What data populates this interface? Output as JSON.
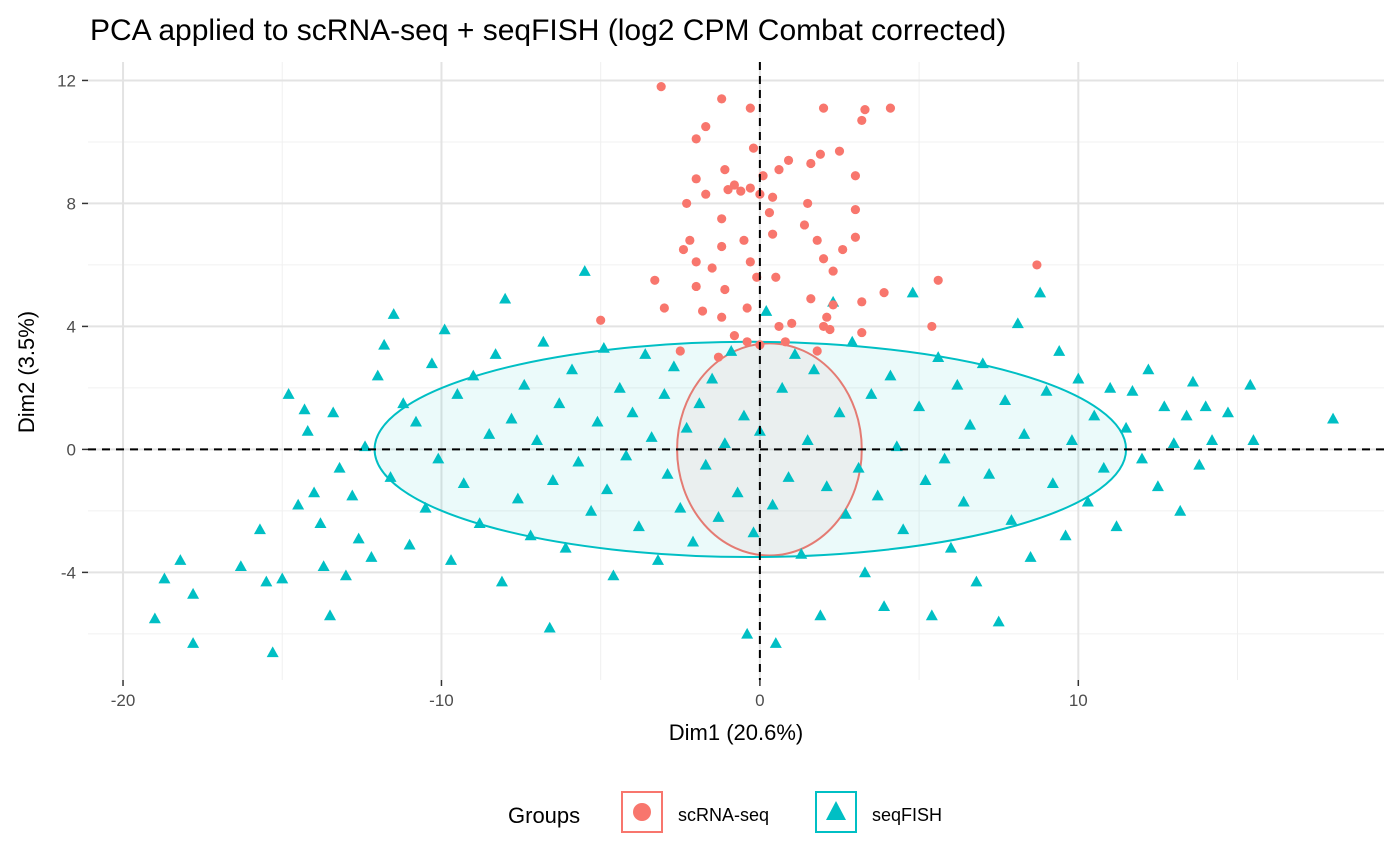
{
  "chart_data": {
    "type": "scatter",
    "title": "PCA applied to scRNA-seq + seqFISH (log2 CPM Combat corrected)",
    "xlabel": "Dim1 (20.6%)",
    "ylabel": "Dim2 (3.5%)",
    "xlim": [
      -21.1,
      19.6
    ],
    "ylim": [
      -7.5,
      12.6
    ],
    "x_ticks": [
      -20,
      -10,
      0,
      10
    ],
    "y_ticks": [
      -4,
      0,
      4,
      8,
      12
    ],
    "x_tick_labels": [
      "-20",
      "-10",
      "0",
      "10"
    ],
    "y_tick_labels": [
      "-4",
      "0",
      "4",
      "8",
      "12"
    ],
    "grid": true,
    "reference_lines": {
      "x": 0,
      "y": 0,
      "style": "dashed"
    },
    "legend": {
      "title": "Groups",
      "position": "bottom",
      "entries": [
        {
          "label": "scRNA-seq",
          "shape": "circle",
          "color": "#F8766D"
        },
        {
          "label": "seqFISH",
          "shape": "triangle",
          "color": "#00BFC4"
        }
      ]
    },
    "series": [
      {
        "name": "scRNA-seq",
        "shape": "circle",
        "color": "#F8766D",
        "ellipse": {
          "cx": 0.3,
          "cy": 0,
          "rx": 2.9,
          "ry": 3.45
        },
        "points": [
          [
            -3.1,
            11.8
          ],
          [
            -1.2,
            11.4
          ],
          [
            -0.3,
            11.1
          ],
          [
            2.0,
            11.1
          ],
          [
            3.3,
            11.05
          ],
          [
            4.1,
            11.1
          ],
          [
            3.2,
            10.7
          ],
          [
            -1.7,
            10.5
          ],
          [
            -2.0,
            10.1
          ],
          [
            -0.2,
            9.8
          ],
          [
            0.9,
            9.4
          ],
          [
            2.5,
            9.7
          ],
          [
            1.9,
            9.6
          ],
          [
            -1.1,
            9.1
          ],
          [
            -0.8,
            8.6
          ],
          [
            0.1,
            8.9
          ],
          [
            0.6,
            9.1
          ],
          [
            1.6,
            9.3
          ],
          [
            3.0,
            8.9
          ],
          [
            -2.3,
            8.0
          ],
          [
            -1.7,
            8.3
          ],
          [
            -0.3,
            8.5
          ],
          [
            -0.6,
            8.4
          ],
          [
            0.4,
            8.2
          ],
          [
            -1.0,
            8.45
          ],
          [
            1.5,
            8.0
          ],
          [
            -2.0,
            8.8
          ],
          [
            0.0,
            8.3
          ],
          [
            0.3,
            7.7
          ],
          [
            -1.2,
            7.5
          ],
          [
            1.4,
            7.3
          ],
          [
            3.0,
            7.8
          ],
          [
            -2.2,
            6.8
          ],
          [
            -2.4,
            6.5
          ],
          [
            -0.5,
            6.8
          ],
          [
            -1.2,
            6.6
          ],
          [
            0.4,
            7.0
          ],
          [
            1.8,
            6.8
          ],
          [
            2.6,
            6.5
          ],
          [
            3.0,
            6.9
          ],
          [
            -3.3,
            5.5
          ],
          [
            -2.0,
            6.1
          ],
          [
            -1.5,
            5.9
          ],
          [
            -0.3,
            6.1
          ],
          [
            -0.1,
            5.6
          ],
          [
            0.5,
            5.6
          ],
          [
            2.0,
            6.2
          ],
          [
            2.3,
            5.8
          ],
          [
            -1.1,
            5.2
          ],
          [
            -2.0,
            5.3
          ],
          [
            1.6,
            4.9
          ],
          [
            2.3,
            4.7
          ],
          [
            3.2,
            4.8
          ],
          [
            5.6,
            5.5
          ],
          [
            8.7,
            6.0
          ],
          [
            3.9,
            5.1
          ],
          [
            -3.0,
            4.6
          ],
          [
            -1.8,
            4.5
          ],
          [
            -1.2,
            4.3
          ],
          [
            -0.4,
            4.6
          ],
          [
            0.6,
            4.0
          ],
          [
            1.0,
            4.1
          ],
          [
            2.1,
            4.3
          ],
          [
            -5.0,
            4.2
          ],
          [
            -0.8,
            3.7
          ],
          [
            0.0,
            3.4
          ],
          [
            1.8,
            3.2
          ],
          [
            2.2,
            3.9
          ],
          [
            5.4,
            4.0
          ],
          [
            -2.5,
            3.2
          ],
          [
            -1.3,
            3.0
          ],
          [
            0.8,
            3.5
          ],
          [
            -0.4,
            3.5
          ],
          [
            2.0,
            4.0
          ],
          [
            3.2,
            3.8
          ]
        ]
      },
      {
        "name": "seqFISH",
        "shape": "triangle",
        "color": "#00BFC4",
        "ellipse": {
          "cx": -0.3,
          "cy": 0,
          "rx": 11.8,
          "ry": 3.5
        },
        "points": [
          [
            -19.0,
            -5.5
          ],
          [
            -18.7,
            -4.2
          ],
          [
            -18.2,
            -3.6
          ],
          [
            -17.8,
            -6.3
          ],
          [
            -17.8,
            -4.7
          ],
          [
            -16.3,
            -3.8
          ],
          [
            -15.7,
            -2.6
          ],
          [
            -15.5,
            -4.3
          ],
          [
            -15.3,
            -6.6
          ],
          [
            -15.0,
            -4.2
          ],
          [
            -14.8,
            1.8
          ],
          [
            -14.5,
            -1.8
          ],
          [
            -14.3,
            1.3
          ],
          [
            -14.2,
            0.6
          ],
          [
            -14.0,
            -1.4
          ],
          [
            -13.8,
            -2.4
          ],
          [
            -13.7,
            -3.8
          ],
          [
            -13.5,
            -5.4
          ],
          [
            -13.4,
            1.2
          ],
          [
            -13.2,
            -0.6
          ],
          [
            -13.0,
            -4.1
          ],
          [
            -12.8,
            -1.5
          ],
          [
            -12.6,
            -2.9
          ],
          [
            -12.4,
            0.1
          ],
          [
            -12.2,
            -3.5
          ],
          [
            -12.0,
            2.4
          ],
          [
            -11.8,
            3.4
          ],
          [
            -11.6,
            -0.9
          ],
          [
            -11.5,
            4.4
          ],
          [
            -11.2,
            1.5
          ],
          [
            -11.0,
            -3.1
          ],
          [
            -10.8,
            0.9
          ],
          [
            -10.5,
            -1.9
          ],
          [
            -10.3,
            2.8
          ],
          [
            -10.1,
            -0.3
          ],
          [
            -9.9,
            3.9
          ],
          [
            -9.7,
            -3.6
          ],
          [
            -9.5,
            1.8
          ],
          [
            -9.3,
            -1.1
          ],
          [
            -9.0,
            2.4
          ],
          [
            -8.8,
            -2.4
          ],
          [
            -8.5,
            0.5
          ],
          [
            -8.3,
            3.1
          ],
          [
            -8.1,
            -4.3
          ],
          [
            -8.0,
            4.9
          ],
          [
            -7.8,
            1.0
          ],
          [
            -7.6,
            -1.6
          ],
          [
            -7.4,
            2.1
          ],
          [
            -7.2,
            -2.8
          ],
          [
            -7.0,
            0.3
          ],
          [
            -6.8,
            3.5
          ],
          [
            -6.6,
            -5.8
          ],
          [
            -6.5,
            -1.0
          ],
          [
            -6.3,
            1.5
          ],
          [
            -6.1,
            -3.2
          ],
          [
            -5.9,
            2.6
          ],
          [
            -5.7,
            -0.4
          ],
          [
            -5.5,
            5.8
          ],
          [
            -5.3,
            -2.0
          ],
          [
            -5.1,
            0.9
          ],
          [
            -4.9,
            3.3
          ],
          [
            -4.8,
            -1.3
          ],
          [
            -4.6,
            -4.1
          ],
          [
            -4.4,
            2.0
          ],
          [
            -4.2,
            -0.2
          ],
          [
            -4.0,
            1.2
          ],
          [
            -3.8,
            -2.5
          ],
          [
            -3.6,
            3.1
          ],
          [
            -3.4,
            0.4
          ],
          [
            -3.2,
            -3.6
          ],
          [
            -3.0,
            1.8
          ],
          [
            -2.9,
            -0.8
          ],
          [
            -2.7,
            2.7
          ],
          [
            -2.5,
            -1.9
          ],
          [
            -2.3,
            0.7
          ],
          [
            -2.1,
            -3.0
          ],
          [
            -1.9,
            1.5
          ],
          [
            -1.7,
            -0.5
          ],
          [
            -1.5,
            2.3
          ],
          [
            -1.3,
            -2.2
          ],
          [
            -1.1,
            0.2
          ],
          [
            -0.9,
            3.2
          ],
          [
            -0.7,
            -1.4
          ],
          [
            -0.5,
            1.1
          ],
          [
            -0.4,
            -6.0
          ],
          [
            -0.2,
            -2.7
          ],
          [
            0.0,
            0.6
          ],
          [
            0.2,
            4.5
          ],
          [
            0.4,
            -1.8
          ],
          [
            0.5,
            -6.3
          ],
          [
            0.7,
            2.0
          ],
          [
            0.9,
            -0.9
          ],
          [
            1.1,
            3.1
          ],
          [
            1.3,
            -3.4
          ],
          [
            1.5,
            0.3
          ],
          [
            1.7,
            2.6
          ],
          [
            1.9,
            -5.4
          ],
          [
            2.1,
            -1.2
          ],
          [
            2.3,
            4.8
          ],
          [
            2.5,
            1.2
          ],
          [
            2.7,
            -2.1
          ],
          [
            2.9,
            3.5
          ],
          [
            3.1,
            -0.6
          ],
          [
            3.3,
            -4.0
          ],
          [
            3.5,
            1.8
          ],
          [
            3.7,
            -1.5
          ],
          [
            3.9,
            -5.1
          ],
          [
            4.1,
            2.4
          ],
          [
            4.3,
            0.1
          ],
          [
            4.5,
            -2.6
          ],
          [
            4.8,
            5.1
          ],
          [
            5.0,
            1.4
          ],
          [
            5.2,
            -1.0
          ],
          [
            5.4,
            -5.4
          ],
          [
            5.6,
            3.0
          ],
          [
            5.8,
            -0.3
          ],
          [
            6.0,
            -3.2
          ],
          [
            6.2,
            2.1
          ],
          [
            6.4,
            -1.7
          ],
          [
            6.6,
            0.8
          ],
          [
            6.8,
            -4.3
          ],
          [
            7.0,
            2.8
          ],
          [
            7.2,
            -0.8
          ],
          [
            7.5,
            -5.6
          ],
          [
            7.7,
            1.6
          ],
          [
            7.9,
            -2.3
          ],
          [
            8.1,
            4.1
          ],
          [
            8.3,
            0.5
          ],
          [
            8.5,
            -3.5
          ],
          [
            8.8,
            5.1
          ],
          [
            9.0,
            1.9
          ],
          [
            9.2,
            -1.1
          ],
          [
            9.4,
            3.2
          ],
          [
            9.6,
            -2.8
          ],
          [
            9.8,
            0.3
          ],
          [
            10.0,
            2.3
          ],
          [
            10.3,
            -1.7
          ],
          [
            10.5,
            1.1
          ],
          [
            10.8,
            -0.6
          ],
          [
            11.0,
            2.0
          ],
          [
            11.2,
            -2.5
          ],
          [
            11.5,
            0.7
          ],
          [
            11.7,
            1.9
          ],
          [
            12.0,
            -0.3
          ],
          [
            12.2,
            2.6
          ],
          [
            12.5,
            -1.2
          ],
          [
            12.7,
            1.4
          ],
          [
            13.0,
            0.2
          ],
          [
            13.2,
            -2.0
          ],
          [
            13.4,
            1.1
          ],
          [
            13.6,
            2.2
          ],
          [
            13.8,
            -0.5
          ],
          [
            14.0,
            1.4
          ],
          [
            14.2,
            0.3
          ],
          [
            14.7,
            1.2
          ],
          [
            15.4,
            2.1
          ],
          [
            15.5,
            0.3
          ],
          [
            18.0,
            1.0
          ]
        ]
      }
    ]
  }
}
